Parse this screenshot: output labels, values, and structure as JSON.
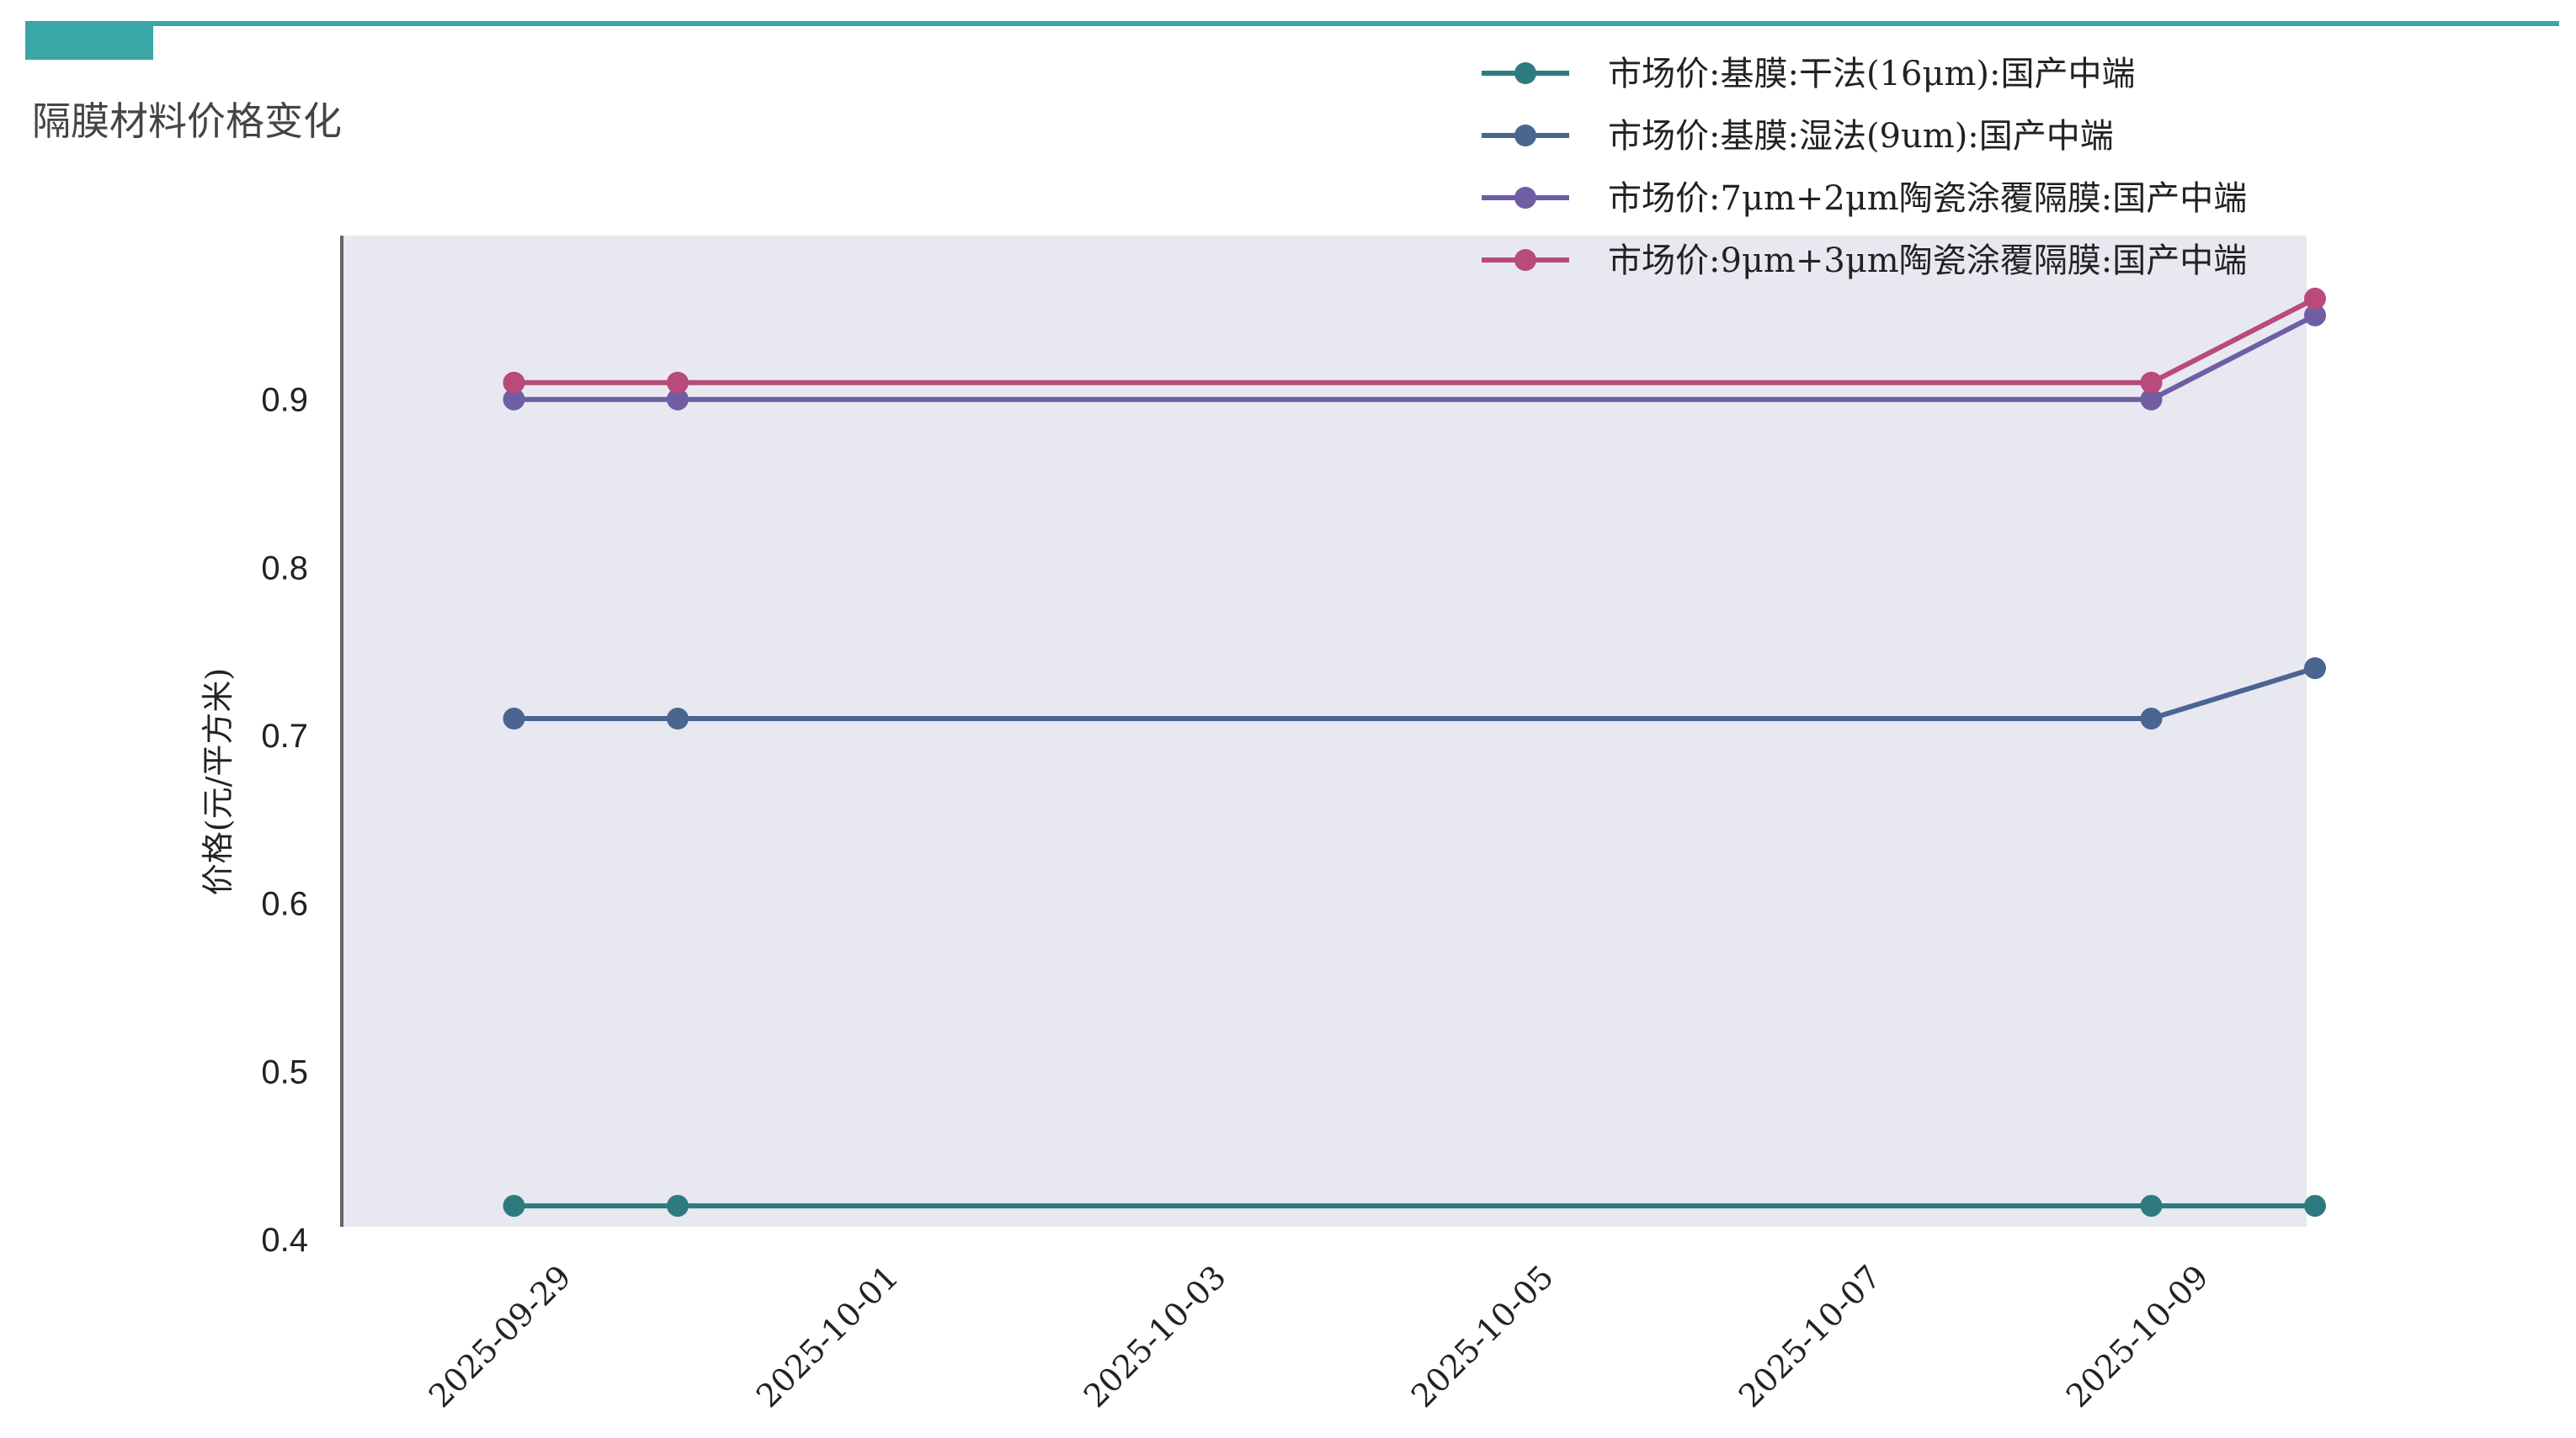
{
  "header": {
    "title": "隔膜材料价格变化",
    "accent_color": "#3aa6a6"
  },
  "chart_data": {
    "type": "line",
    "title": "",
    "xlabel": "",
    "ylabel": "价格(元/平方米)",
    "x": [
      "2025-09-29",
      "2025-09-30",
      "2025-10-09",
      "2025-10-10"
    ],
    "xticks": [
      "2025-09-29",
      "2025-10-01",
      "2025-10-03",
      "2025-10-05",
      "2025-10-07",
      "2025-10-09"
    ],
    "xlim": [
      "2025-09-28",
      "2025-10-10"
    ],
    "yticks": [
      0.4,
      0.5,
      0.6,
      0.7,
      0.8,
      0.9
    ],
    "ylim": [
      0.4,
      0.99
    ],
    "grid": false,
    "background": "#e8e8f1",
    "legend_position": "top-right",
    "series": [
      {
        "name": "市场价:基膜:干法(16μm):国产中端",
        "color": "#2e7b7f",
        "values": [
          0.42,
          0.42,
          0.42,
          0.42
        ]
      },
      {
        "name": "市场价:基膜:湿法(9um):国产中端",
        "color": "#4b6591",
        "values": [
          0.71,
          0.71,
          0.71,
          0.74
        ]
      },
      {
        "name": "市场价:7μm+2μm陶瓷涂覆隔膜:国产中端",
        "color": "#6f5ea4",
        "values": [
          0.9,
          0.9,
          0.9,
          0.95
        ]
      },
      {
        "name": "市场价:9μm+3μm陶瓷涂覆隔膜:国产中端",
        "color": "#b84a7c",
        "values": [
          0.91,
          0.91,
          0.91,
          0.96
        ]
      }
    ]
  }
}
